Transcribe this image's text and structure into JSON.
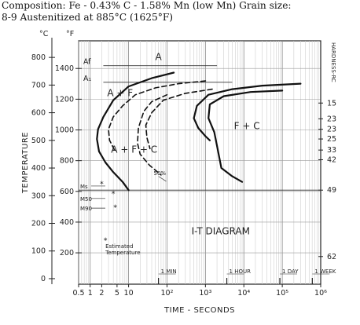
{
  "chart_data": {
    "type": "line",
    "header": {
      "line1": "Composition: Fe - 0.43% C - 1.58% Mn (low Mn) Grain size:",
      "line2": "8-9 Austenitized at 885°C (1625°F)"
    },
    "xlabel": "TIME - SECONDS",
    "ylabel": "TEMPERATURE",
    "right_label": "HARDNESS-RC",
    "x_scale": "log",
    "xlim": [
      0.5,
      1000000
    ],
    "ylim_celsius": [
      -20,
      860
    ],
    "y_units_left": [
      "°C",
      "°F"
    ],
    "x_ticks": [
      {
        "v": 0.5,
        "t": "0.5"
      },
      {
        "v": 1,
        "t": "1"
      },
      {
        "v": 2,
        "t": "2"
      },
      {
        "v": 5,
        "t": "5"
      },
      {
        "v": 10,
        "t": "10"
      },
      {
        "v": 100,
        "t": "10²"
      },
      {
        "v": 1000,
        "t": "10³"
      },
      {
        "v": 10000,
        "t": "10⁴"
      },
      {
        "v": 100000,
        "t": "10⁵"
      },
      {
        "v": 1000000,
        "t": "10⁶"
      }
    ],
    "c_ticks": [
      0,
      100,
      200,
      300,
      400,
      500,
      600,
      700,
      800
    ],
    "f_ticks": [
      200,
      400,
      600,
      800,
      1000,
      1200,
      1400
    ],
    "hardness_scale": [
      {
        "c": 635,
        "t": "15"
      },
      {
        "c": 578,
        "t": "23"
      },
      {
        "c": 540,
        "t": "23"
      },
      {
        "c": 505,
        "t": "25"
      },
      {
        "c": 465,
        "t": "33"
      },
      {
        "c": 430,
        "t": "42"
      },
      {
        "c": 320,
        "t": "49"
      },
      {
        "c": 80,
        "t": "62"
      }
    ],
    "time_markers": [
      {
        "v": 60,
        "t": "1 MIN"
      },
      {
        "v": 3600,
        "t": "1 HOUR"
      },
      {
        "v": 86400,
        "t": "1 DAY"
      },
      {
        "v": 604800,
        "t": "1 WEEK"
      }
    ],
    "horizontal_lines": [
      {
        "name": "Ae1",
        "c": 710,
        "from": 2.2,
        "to": 5000,
        "label": "A₁"
      },
      {
        "name": "Ae3",
        "c": 770,
        "from": 2.2,
        "to": 2000,
        "label": "Af"
      },
      {
        "name": "Ms",
        "c": 320,
        "from": 0.5,
        "to": 1000000,
        "label": "Ms"
      }
    ],
    "region_labels": [
      {
        "t": "A",
        "x": 60,
        "c": 790
      },
      {
        "t": "A + F",
        "x": 6,
        "c": 660
      },
      {
        "t": "F + C",
        "x": 12000,
        "c": 540
      },
      {
        "t": "A + F + C",
        "x": 14,
        "c": 455
      },
      {
        "t": "I-T DIAGRAM",
        "x": 2500,
        "c": 160
      }
    ],
    "side_labels": [
      {
        "t": "Ms",
        "c": 335
      },
      {
        "t": "M50",
        "c": 290
      },
      {
        "t": "M90",
        "c": 255
      }
    ],
    "legend": {
      "symbol": "*",
      "t1": "Estimated",
      "t2": "Temperature"
    },
    "annotation_50": "50%",
    "series": [
      {
        "name": "ferrite start",
        "style": "solid",
        "x": [
          150,
          40,
          10,
          4,
          2.2,
          1.6,
          1.5,
          1.7,
          2.5,
          4,
          7,
          10
        ],
        "y": [
          745,
          725,
          695,
          645,
          585,
          540,
          505,
          460,
          420,
          385,
          350,
          320
        ]
      },
      {
        "name": "ferrite finish",
        "style": "dashed",
        "x": [
          1000,
          200,
          50,
          15,
          7,
          4,
          3,
          3.2,
          4.5
        ],
        "y": [
          715,
          705,
          690,
          665,
          625,
          585,
          540,
          500,
          460
        ]
      },
      {
        "name": "pearlite start",
        "style": "solid",
        "x": [
          300000,
          30000,
          5000,
          1200,
          600,
          500,
          650,
          1000,
          1300
        ],
        "y": [
          705,
          698,
          685,
          665,
          625,
          580,
          545,
          515,
          500
        ]
      },
      {
        "name": "pearlite finish",
        "style": "solid",
        "x": [
          100000,
          15000,
          3000,
          1300,
          1200,
          1700,
          2000,
          2600,
          5000,
          9000
        ],
        "y": [
          680,
          675,
          660,
          630,
          580,
          530,
          480,
          400,
          370,
          350
        ]
      },
      {
        "name": "mid curve",
        "style": "dashed",
        "x": [
          1500,
          300,
          80,
          40,
          28,
          30,
          36
        ],
        "y": [
          685,
          670,
          645,
          600,
          555,
          510,
          470
        ]
      },
      {
        "name": "50% curve",
        "style": "dashed",
        "x": [
          100,
          40,
          25,
          18,
          17,
          20,
          35,
          70
        ],
        "y": [
          665,
          640,
          605,
          545,
          490,
          450,
          410,
          375
        ]
      }
    ],
    "estimated_points": [
      {
        "x": 4,
        "c": 310
      },
      {
        "x": 4.5,
        "c": 260
      },
      {
        "x": 2,
        "c": 345
      },
      {
        "x": 2.5,
        "c": 140
      }
    ]
  }
}
